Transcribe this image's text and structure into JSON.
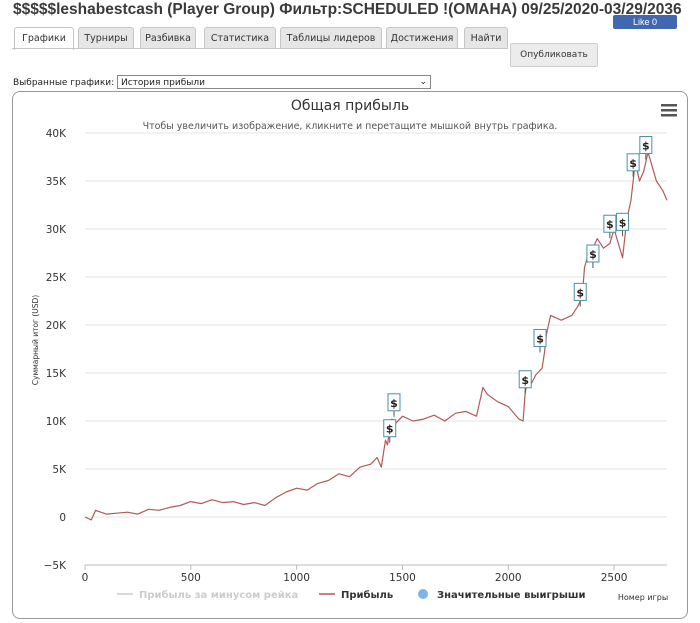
{
  "header": {
    "title": "$$$$$leshabestcash (Player Group) Фильтр:SCHEDULED !(OMAHA) 09/25/2020-03/29/2036",
    "like_label": "Like 0"
  },
  "tabs": [
    {
      "label": "Графики",
      "active": true
    },
    {
      "label": "Турниры",
      "active": false
    },
    {
      "label": "Разбивка",
      "active": false
    },
    {
      "label": "Статистика",
      "active": false
    },
    {
      "label": "Таблицы лидеров",
      "active": false
    },
    {
      "label": "Достижения",
      "active": false
    },
    {
      "label": "Найти",
      "active": false
    }
  ],
  "publish_label": "Опубликовать",
  "selector": {
    "label": "Выбранные графики:",
    "value": "История прибыли"
  },
  "menu_icon": "hamburger-menu-icon",
  "colors": {
    "profit_line": "#b05a5a",
    "rake_line": "#cccccc",
    "big_win": "#7cb5ec"
  },
  "chart_data": {
    "type": "line",
    "title": "Общая прибыль",
    "subtitle": "Чтобы увеличить изображение, кликните и перетащите мышкой внутрь графика.",
    "xlabel": "Номер игры",
    "ylabel": "Суммарный итог (USD)",
    "xlim": [
      0,
      2750
    ],
    "ylim": [
      -5000,
      40000
    ],
    "x_ticks": [
      0,
      500,
      1000,
      1500,
      2000,
      2500
    ],
    "x_tick_labels": [
      "0",
      "500",
      "1000",
      "1500",
      "2000",
      "2500"
    ],
    "y_ticks": [
      -5000,
      0,
      5000,
      10000,
      15000,
      20000,
      25000,
      30000,
      35000,
      40000
    ],
    "y_tick_labels": [
      "−5K",
      "0",
      "5K",
      "10K",
      "15K",
      "20K",
      "25K",
      "30K",
      "35K",
      "40K"
    ],
    "series": [
      {
        "name": "Прибыль",
        "x": [
          0,
          30,
          50,
          100,
          150,
          200,
          250,
          300,
          350,
          400,
          450,
          500,
          550,
          600,
          650,
          700,
          750,
          800,
          850,
          900,
          950,
          1000,
          1050,
          1100,
          1150,
          1200,
          1250,
          1300,
          1350,
          1380,
          1400,
          1420,
          1430,
          1440,
          1450,
          1470,
          1500,
          1550,
          1600,
          1650,
          1700,
          1750,
          1800,
          1850,
          1880,
          1900,
          1950,
          2000,
          2050,
          2070,
          2080,
          2090,
          2100,
          2130,
          2160,
          2170,
          2180,
          2200,
          2250,
          2300,
          2330,
          2350,
          2360,
          2380,
          2400,
          2420,
          2450,
          2480,
          2500,
          2520,
          2540,
          2560,
          2580,
          2600,
          2620,
          2640,
          2660,
          2680,
          2700,
          2730,
          2750
        ],
        "values": [
          0,
          -300,
          700,
          300,
          400,
          500,
          300,
          800,
          700,
          1000,
          1200,
          1600,
          1400,
          1800,
          1500,
          1600,
          1300,
          1500,
          1200,
          2000,
          2600,
          3000,
          2800,
          3500,
          3800,
          4500,
          4200,
          5200,
          5500,
          6200,
          5200,
          8000,
          7500,
          9500,
          10200,
          9800,
          10500,
          10000,
          10200,
          10600,
          10000,
          10800,
          11000,
          10500,
          13500,
          12800,
          12000,
          11500,
          10200,
          10000,
          13000,
          14000,
          13500,
          14800,
          15500,
          17000,
          19000,
          21000,
          20500,
          21000,
          22000,
          23000,
          26000,
          27500,
          28000,
          29000,
          28000,
          28500,
          30000,
          28500,
          27000,
          31000,
          33000,
          37000,
          35000,
          36000,
          38000,
          36500,
          35000,
          34000,
          33000
        ]
      },
      {
        "name": "Прибыль за минусом рейка",
        "x": [],
        "values": []
      },
      {
        "name": "Значительные выигрыши",
        "x": [],
        "values": []
      }
    ],
    "big_win_markers": [
      {
        "x": 1440,
        "y": 9300
      },
      {
        "x": 1460,
        "y": 12000
      },
      {
        "x": 2080,
        "y": 14400
      },
      {
        "x": 2150,
        "y": 18700
      },
      {
        "x": 2340,
        "y": 23500
      },
      {
        "x": 2400,
        "y": 27500
      },
      {
        "x": 2480,
        "y": 30600
      },
      {
        "x": 2540,
        "y": 30800
      },
      {
        "x": 2590,
        "y": 37000
      },
      {
        "x": 2650,
        "y": 38800
      }
    ],
    "legend": {
      "position": "bottom",
      "items": [
        {
          "label": "Прибыль за минусом рейка",
          "type": "line",
          "color": "#cccccc",
          "disabled": true
        },
        {
          "label": "Прибыль",
          "type": "line",
          "color": "#b05a5a",
          "disabled": false
        },
        {
          "label": "Значительные выигрыши",
          "type": "dot",
          "color": "#7cb5ec",
          "disabled": false
        }
      ]
    },
    "grid": "horizontal"
  }
}
